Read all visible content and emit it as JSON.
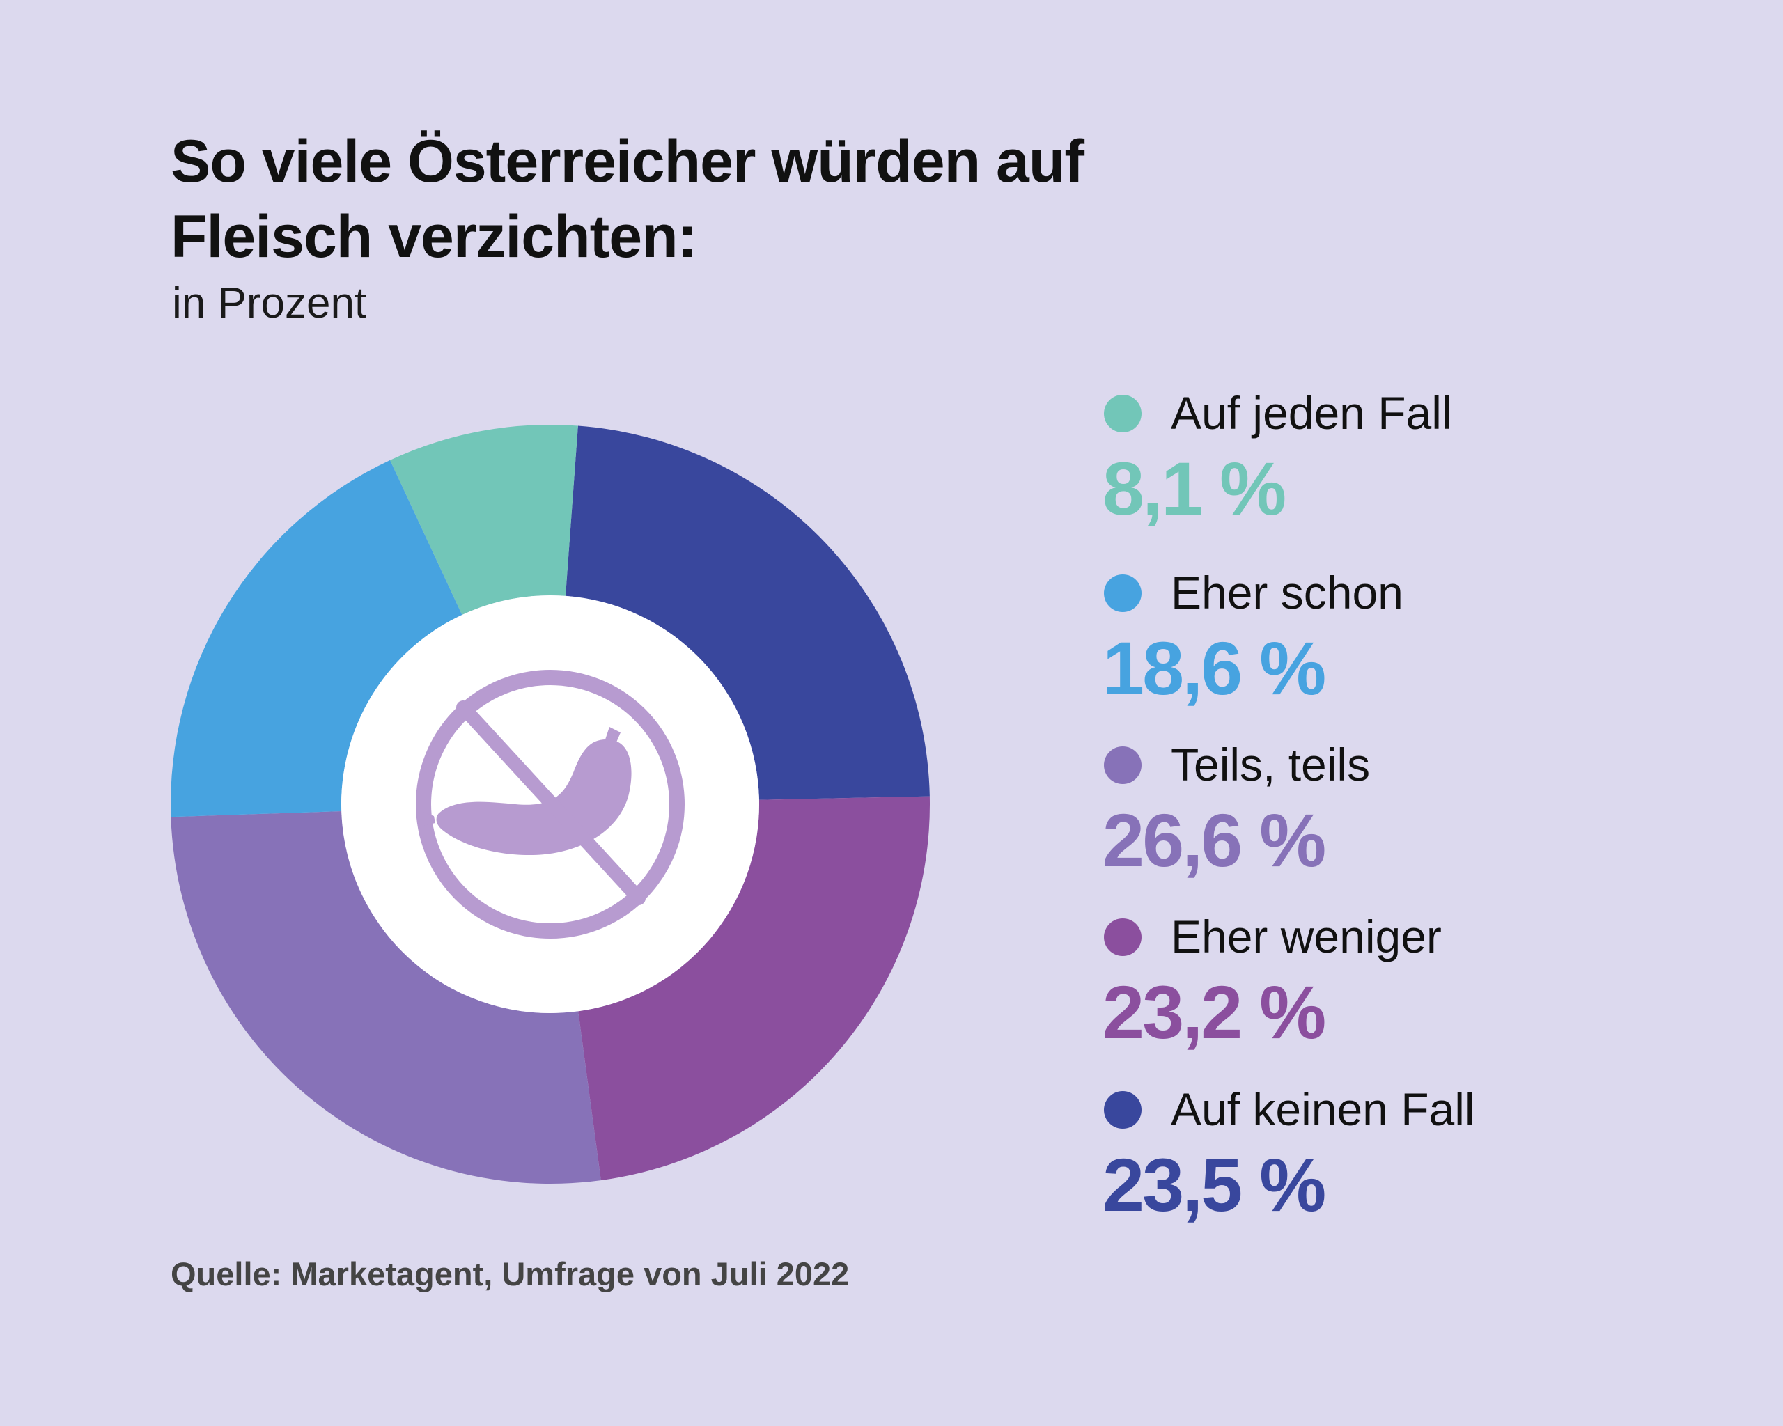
{
  "title": "So viele Österreicher würden auf Fleisch verzichten:",
  "subtitle": "in Prozent",
  "source": "Quelle: Marketagent, Umfrage von Juli 2022",
  "center_icon": "no-sausage-icon",
  "colors": {
    "background": "#dcd9ee",
    "icon": "#b79bd0",
    "center": "#ffffff"
  },
  "chart_data": {
    "type": "pie",
    "title": "So viele Österreicher würden auf Fleisch verzichten:",
    "subtitle": "in Prozent",
    "unit": "%",
    "categories": [
      "Auf jeden Fall",
      "Eher schon",
      "Teils, teils",
      "Eher weniger",
      "Auf keinen Fall"
    ],
    "values": [
      8.1,
      18.6,
      26.6,
      23.2,
      23.5
    ],
    "value_labels": [
      "8,1 %",
      "18,6 %",
      "26,6 %",
      "23,2 %",
      "23,5 %"
    ],
    "colors": [
      "#72c6b8",
      "#47a3e0",
      "#8772b8",
      "#8b4f9e",
      "#39479d"
    ],
    "legend_position": "right",
    "donut": true
  }
}
